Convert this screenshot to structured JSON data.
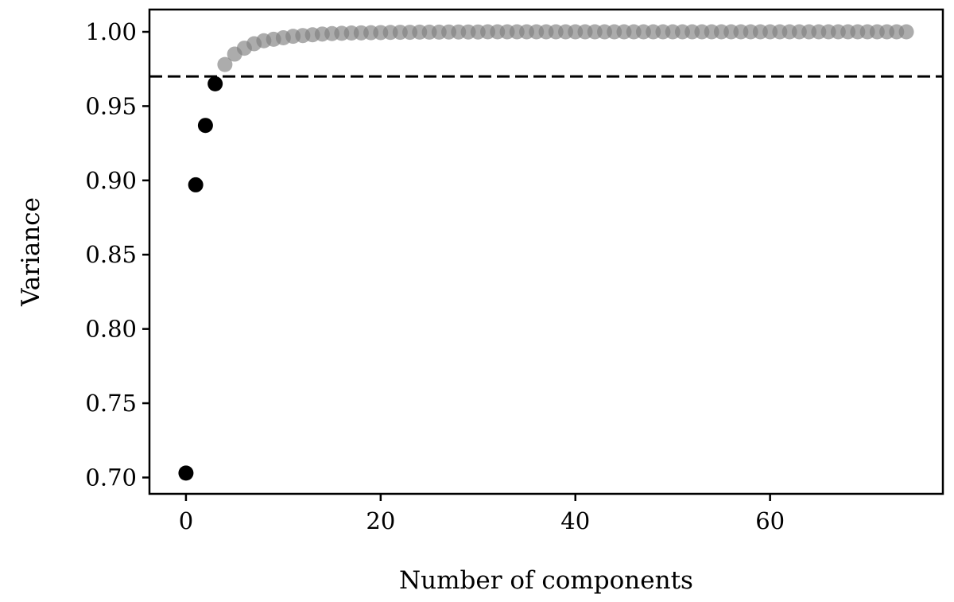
{
  "chart_data": {
    "type": "scatter",
    "title": "",
    "xlabel": "Number of components",
    "ylabel": "Variance",
    "xlim": [
      -3.75,
      77.75
    ],
    "ylim": [
      0.689,
      1.015
    ],
    "x_ticks": [
      0,
      20,
      40,
      60
    ],
    "x_tick_labels": [
      "0",
      "20",
      "40",
      "60"
    ],
    "y_ticks": [
      0.7,
      0.75,
      0.8,
      0.85,
      0.9,
      0.95,
      1.0
    ],
    "y_tick_labels": [
      "0.70",
      "0.75",
      "0.80",
      "0.85",
      "0.90",
      "0.95",
      "1.00"
    ],
    "grid": false,
    "legend": "none",
    "threshold": {
      "y": 0.97,
      "style": "dashed",
      "color": "#000000"
    },
    "series": [
      {
        "color": "#000000",
        "opacity": 1.0,
        "x": [
          0,
          1,
          2,
          3
        ],
        "y": [
          0.703,
          0.897,
          0.937,
          0.965
        ]
      },
      {
        "color": "#808080",
        "opacity": 0.65,
        "x": [
          4,
          5,
          6,
          7,
          8,
          9,
          10,
          11,
          12,
          13,
          14,
          15,
          16,
          17,
          18,
          19,
          20,
          21,
          22,
          23,
          24,
          25,
          26,
          27,
          28,
          29,
          30,
          31,
          32,
          33,
          34,
          35,
          36,
          37,
          38,
          39,
          40,
          41,
          42,
          43,
          44,
          45,
          46,
          47,
          48,
          49,
          50,
          51,
          52,
          53,
          54,
          55,
          56,
          57,
          58,
          59,
          60,
          61,
          62,
          63,
          64,
          65,
          66,
          67,
          68,
          69,
          70,
          71,
          72,
          73,
          74
        ],
        "y": [
          0.978,
          0.985,
          0.989,
          0.992,
          0.994,
          0.995,
          0.996,
          0.997,
          0.9975,
          0.998,
          0.9985,
          0.9988,
          0.999,
          0.9992,
          0.9993,
          0.9994,
          0.9995,
          0.9996,
          0.9997,
          0.9997,
          0.9998,
          0.9998,
          0.9998,
          0.9999,
          0.9999,
          0.9999,
          0.9999,
          1.0,
          1.0,
          1.0,
          1.0,
          1.0,
          1.0,
          1.0,
          1.0,
          1.0,
          1.0,
          1.0,
          1.0,
          1.0,
          1.0,
          1.0,
          1.0,
          1.0,
          1.0,
          1.0,
          1.0,
          1.0,
          1.0,
          1.0,
          1.0,
          1.0,
          1.0,
          1.0,
          1.0,
          1.0,
          1.0,
          1.0,
          1.0,
          1.0,
          1.0,
          1.0,
          1.0,
          1.0,
          1.0,
          1.0,
          1.0,
          1.0,
          1.0,
          1.0,
          1.0
        ]
      }
    ]
  }
}
